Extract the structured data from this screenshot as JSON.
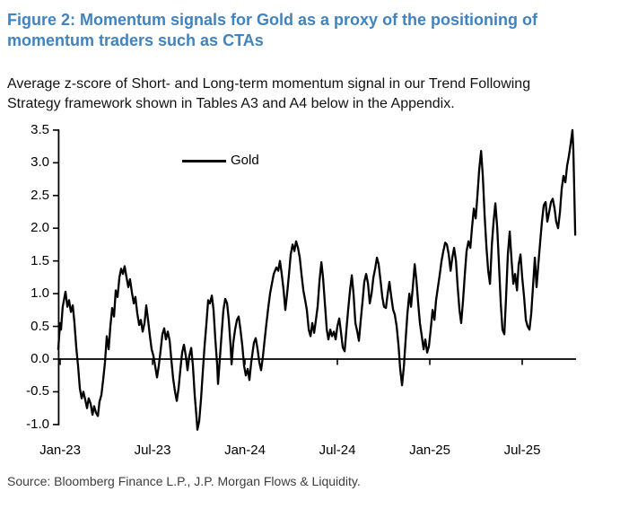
{
  "figure": {
    "title": "Figure 2: Momentum signals for Gold as a proxy of the positioning of momentum traders such as CTAs",
    "subtitle": "Average z-score of Short- and Long-term momentum signal in our Trend Following Strategy framework shown in Tables A3 and A4 below in the Appendix.",
    "source": "Source: Bloomberg Finance L.P., J.P. Morgan Flows & Liquidity.",
    "title_color": "#4083BF",
    "line_color": "#000000"
  },
  "chart_data": {
    "type": "line",
    "title": "",
    "xlabel": "",
    "ylabel": "",
    "x_unit": "months since Jan-2023",
    "xlim_months": [
      -0.12,
      33.5
    ],
    "ylim": [
      -1.0,
      3.5
    ],
    "grid": false,
    "legend_position": "top-center",
    "y_ticks": [
      "3.5",
      "3.0",
      "2.5",
      "2.0",
      "1.5",
      "1.0",
      "0.5",
      "0.0",
      "-0.5",
      "-1.0"
    ],
    "x_ticks": [
      {
        "t": 0,
        "label": "Jan-23"
      },
      {
        "t": 6,
        "label": "Jul-23"
      },
      {
        "t": 12,
        "label": "Jan-24"
      },
      {
        "t": 18,
        "label": "Jul-24"
      },
      {
        "t": 24,
        "label": "Jan-25"
      },
      {
        "t": 30,
        "label": "Jul-25"
      }
    ],
    "series": [
      {
        "name": "Gold",
        "color": "#000000",
        "points": [
          [
            -0.12,
            0.15
          ],
          [
            0.0,
            0.55
          ],
          [
            0.06,
            0.45
          ],
          [
            0.17,
            0.8
          ],
          [
            0.35,
            1.03
          ],
          [
            0.47,
            0.8
          ],
          [
            0.58,
            0.9
          ],
          [
            0.7,
            0.72
          ],
          [
            0.82,
            0.82
          ],
          [
            0.93,
            0.55
          ],
          [
            1.05,
            0.18
          ],
          [
            1.17,
            -0.12
          ],
          [
            1.28,
            -0.45
          ],
          [
            1.4,
            -0.6
          ],
          [
            1.51,
            -0.5
          ],
          [
            1.63,
            -0.62
          ],
          [
            1.75,
            -0.75
          ],
          [
            1.86,
            -0.6
          ],
          [
            1.98,
            -0.68
          ],
          [
            2.1,
            -0.85
          ],
          [
            2.21,
            -0.72
          ],
          [
            2.33,
            -0.82
          ],
          [
            2.45,
            -0.87
          ],
          [
            2.56,
            -0.65
          ],
          [
            2.68,
            -0.55
          ],
          [
            2.8,
            -0.3
          ],
          [
            2.91,
            -0.05
          ],
          [
            3.03,
            0.35
          ],
          [
            3.15,
            0.15
          ],
          [
            3.26,
            0.5
          ],
          [
            3.38,
            0.78
          ],
          [
            3.5,
            0.65
          ],
          [
            3.61,
            1.05
          ],
          [
            3.73,
            0.95
          ],
          [
            3.85,
            1.25
          ],
          [
            3.96,
            1.38
          ],
          [
            4.08,
            1.3
          ],
          [
            4.19,
            1.42
          ],
          [
            4.31,
            1.25
          ],
          [
            4.43,
            1.1
          ],
          [
            4.54,
            1.22
          ],
          [
            4.66,
            1.02
          ],
          [
            4.78,
            0.85
          ],
          [
            4.89,
            0.95
          ],
          [
            5.01,
            0.7
          ],
          [
            5.13,
            0.52
          ],
          [
            5.24,
            0.6
          ],
          [
            5.36,
            0.42
          ],
          [
            5.48,
            0.55
          ],
          [
            5.59,
            0.82
          ],
          [
            5.71,
            0.6
          ],
          [
            5.83,
            0.35
          ],
          [
            5.94,
            0.15
          ],
          [
            6.06,
            0.05
          ],
          [
            6.18,
            -0.12
          ],
          [
            6.29,
            -0.28
          ],
          [
            6.41,
            -0.1
          ],
          [
            6.52,
            0.12
          ],
          [
            6.64,
            0.38
          ],
          [
            6.76,
            0.47
          ],
          [
            6.87,
            0.3
          ],
          [
            6.99,
            0.42
          ],
          [
            7.11,
            0.28
          ],
          [
            7.22,
            0.0
          ],
          [
            7.34,
            -0.3
          ],
          [
            7.46,
            -0.5
          ],
          [
            7.57,
            -0.64
          ],
          [
            7.69,
            -0.45
          ],
          [
            7.81,
            -0.15
          ],
          [
            7.92,
            0.1
          ],
          [
            8.04,
            0.22
          ],
          [
            8.16,
            0.05
          ],
          [
            8.27,
            -0.17
          ],
          [
            8.39,
            0.05
          ],
          [
            8.51,
            0.17
          ],
          [
            8.62,
            -0.1
          ],
          [
            8.74,
            -0.55
          ],
          [
            8.86,
            -0.9
          ],
          [
            8.91,
            -1.08
          ],
          [
            9.03,
            -0.95
          ],
          [
            9.15,
            -0.6
          ],
          [
            9.26,
            -0.2
          ],
          [
            9.38,
            0.2
          ],
          [
            9.5,
            0.55
          ],
          [
            9.61,
            0.9
          ],
          [
            9.73,
            0.85
          ],
          [
            9.85,
            0.97
          ],
          [
            9.96,
            0.75
          ],
          [
            10.08,
            0.3
          ],
          [
            10.2,
            -0.1
          ],
          [
            10.25,
            -0.38
          ],
          [
            10.37,
            0.0
          ],
          [
            10.49,
            0.4
          ],
          [
            10.6,
            0.75
          ],
          [
            10.72,
            0.92
          ],
          [
            10.84,
            0.85
          ],
          [
            10.95,
            0.6
          ],
          [
            11.07,
            0.2
          ],
          [
            11.13,
            -0.08
          ],
          [
            11.24,
            0.25
          ],
          [
            11.36,
            0.45
          ],
          [
            11.48,
            0.6
          ],
          [
            11.59,
            0.65
          ],
          [
            11.71,
            0.45
          ],
          [
            11.83,
            0.2
          ],
          [
            11.94,
            -0.1
          ],
          [
            12.06,
            -0.25
          ],
          [
            12.18,
            -0.15
          ],
          [
            12.29,
            -0.32
          ],
          [
            12.41,
            -0.05
          ],
          [
            12.58,
            0.25
          ],
          [
            12.7,
            0.32
          ],
          [
            12.82,
            0.15
          ],
          [
            12.93,
            -0.05
          ],
          [
            13.05,
            -0.17
          ],
          [
            13.17,
            0.05
          ],
          [
            13.28,
            0.3
          ],
          [
            13.4,
            0.55
          ],
          [
            13.52,
            0.8
          ],
          [
            13.63,
            1.0
          ],
          [
            13.75,
            1.15
          ],
          [
            13.87,
            1.3
          ],
          [
            14.04,
            1.4
          ],
          [
            14.16,
            1.35
          ],
          [
            14.27,
            1.5
          ],
          [
            14.39,
            1.3
          ],
          [
            14.51,
            1.05
          ],
          [
            14.62,
            0.75
          ],
          [
            14.74,
            1.0
          ],
          [
            14.86,
            1.3
          ],
          [
            14.97,
            1.6
          ],
          [
            15.09,
            1.75
          ],
          [
            15.21,
            1.65
          ],
          [
            15.32,
            1.8
          ],
          [
            15.44,
            1.7
          ],
          [
            15.56,
            1.55
          ],
          [
            15.67,
            1.3
          ],
          [
            15.79,
            1.05
          ],
          [
            15.91,
            0.9
          ],
          [
            16.02,
            0.75
          ],
          [
            16.14,
            0.45
          ],
          [
            16.26,
            0.35
          ],
          [
            16.37,
            0.55
          ],
          [
            16.49,
            0.4
          ],
          [
            16.61,
            0.6
          ],
          [
            16.72,
            0.8
          ],
          [
            16.84,
            1.2
          ],
          [
            16.96,
            1.48
          ],
          [
            17.07,
            1.25
          ],
          [
            17.19,
            0.85
          ],
          [
            17.31,
            0.45
          ],
          [
            17.42,
            0.3
          ],
          [
            17.54,
            0.45
          ],
          [
            17.65,
            0.35
          ],
          [
            17.77,
            0.42
          ],
          [
            17.89,
            0.3
          ],
          [
            18.0,
            0.5
          ],
          [
            18.12,
            0.62
          ],
          [
            18.24,
            0.4
          ],
          [
            18.35,
            0.18
          ],
          [
            18.47,
            0.12
          ],
          [
            18.59,
            0.45
          ],
          [
            18.7,
            0.75
          ],
          [
            18.82,
            1.05
          ],
          [
            18.94,
            1.28
          ],
          [
            19.05,
            1.0
          ],
          [
            19.17,
            0.55
          ],
          [
            19.29,
            0.42
          ],
          [
            19.4,
            0.28
          ],
          [
            19.52,
            0.6
          ],
          [
            19.64,
            0.9
          ],
          [
            19.75,
            1.18
          ],
          [
            19.87,
            1.3
          ],
          [
            19.99,
            1.15
          ],
          [
            20.1,
            0.85
          ],
          [
            20.22,
            1.0
          ],
          [
            20.34,
            1.25
          ],
          [
            20.45,
            1.38
          ],
          [
            20.57,
            1.55
          ],
          [
            20.68,
            1.45
          ],
          [
            20.8,
            1.2
          ],
          [
            20.92,
            0.95
          ],
          [
            21.03,
            0.8
          ],
          [
            21.15,
            0.78
          ],
          [
            21.27,
            1.0
          ],
          [
            21.38,
            1.18
          ],
          [
            21.5,
            0.95
          ],
          [
            21.62,
            0.75
          ],
          [
            21.73,
            0.68
          ],
          [
            21.85,
            0.5
          ],
          [
            21.97,
            0.2
          ],
          [
            22.08,
            -0.15
          ],
          [
            22.2,
            -0.4
          ],
          [
            22.32,
            -0.1
          ],
          [
            22.43,
            0.3
          ],
          [
            22.55,
            0.7
          ],
          [
            22.67,
            1.0
          ],
          [
            22.78,
            0.8
          ],
          [
            22.9,
            1.1
          ],
          [
            23.02,
            1.45
          ],
          [
            23.13,
            1.2
          ],
          [
            23.25,
            0.85
          ],
          [
            23.36,
            0.55
          ],
          [
            23.48,
            0.35
          ],
          [
            23.6,
            0.15
          ],
          [
            23.71,
            0.3
          ],
          [
            23.83,
            0.1
          ],
          [
            23.95,
            0.2
          ],
          [
            24.06,
            0.45
          ],
          [
            24.18,
            0.75
          ],
          [
            24.3,
            0.6
          ],
          [
            24.41,
            0.9
          ],
          [
            24.53,
            1.1
          ],
          [
            24.65,
            1.3
          ],
          [
            24.76,
            1.5
          ],
          [
            24.88,
            1.65
          ],
          [
            25.0,
            1.78
          ],
          [
            25.11,
            1.75
          ],
          [
            25.23,
            1.6
          ],
          [
            25.35,
            1.35
          ],
          [
            25.46,
            1.55
          ],
          [
            25.58,
            1.7
          ],
          [
            25.7,
            1.5
          ],
          [
            25.81,
            1.1
          ],
          [
            25.93,
            0.75
          ],
          [
            26.04,
            0.55
          ],
          [
            26.16,
            0.9
          ],
          [
            26.28,
            1.3
          ],
          [
            26.39,
            1.65
          ],
          [
            26.51,
            1.8
          ],
          [
            26.63,
            1.7
          ],
          [
            26.74,
            2.0
          ],
          [
            26.86,
            2.3
          ],
          [
            26.98,
            2.15
          ],
          [
            27.09,
            2.5
          ],
          [
            27.21,
            2.9
          ],
          [
            27.33,
            3.18
          ],
          [
            27.44,
            2.8
          ],
          [
            27.56,
            2.2
          ],
          [
            27.68,
            1.7
          ],
          [
            27.79,
            1.35
          ],
          [
            27.91,
            1.15
          ],
          [
            28.03,
            1.75
          ],
          [
            28.14,
            2.1
          ],
          [
            28.26,
            2.38
          ],
          [
            28.38,
            2.0
          ],
          [
            28.49,
            1.45
          ],
          [
            28.61,
            0.85
          ],
          [
            28.72,
            0.45
          ],
          [
            28.84,
            0.38
          ],
          [
            28.96,
            1.0
          ],
          [
            29.07,
            1.6
          ],
          [
            29.19,
            1.95
          ],
          [
            29.31,
            1.5
          ],
          [
            29.42,
            1.15
          ],
          [
            29.54,
            1.3
          ],
          [
            29.66,
            1.05
          ],
          [
            29.77,
            1.45
          ],
          [
            29.89,
            1.6
          ],
          [
            30.0,
            1.25
          ],
          [
            30.12,
            0.95
          ],
          [
            30.24,
            0.6
          ],
          [
            30.35,
            0.5
          ],
          [
            30.47,
            0.45
          ],
          [
            30.59,
            0.7
          ],
          [
            30.7,
            1.1
          ],
          [
            30.82,
            1.55
          ],
          [
            30.93,
            1.1
          ],
          [
            31.05,
            1.45
          ],
          [
            31.17,
            1.8
          ],
          [
            31.28,
            2.1
          ],
          [
            31.4,
            2.35
          ],
          [
            31.52,
            2.4
          ],
          [
            31.63,
            2.1
          ],
          [
            31.75,
            2.25
          ],
          [
            31.87,
            2.4
          ],
          [
            31.98,
            2.45
          ],
          [
            32.1,
            2.3
          ],
          [
            32.21,
            2.1
          ],
          [
            32.33,
            2.0
          ],
          [
            32.45,
            2.25
          ],
          [
            32.56,
            2.6
          ],
          [
            32.68,
            2.8
          ],
          [
            32.8,
            2.7
          ],
          [
            32.91,
            2.95
          ],
          [
            33.03,
            3.1
          ],
          [
            33.15,
            3.3
          ],
          [
            33.26,
            3.5
          ],
          [
            33.32,
            3.2
          ],
          [
            33.38,
            2.6
          ],
          [
            33.44,
            1.9
          ]
        ]
      }
    ]
  }
}
